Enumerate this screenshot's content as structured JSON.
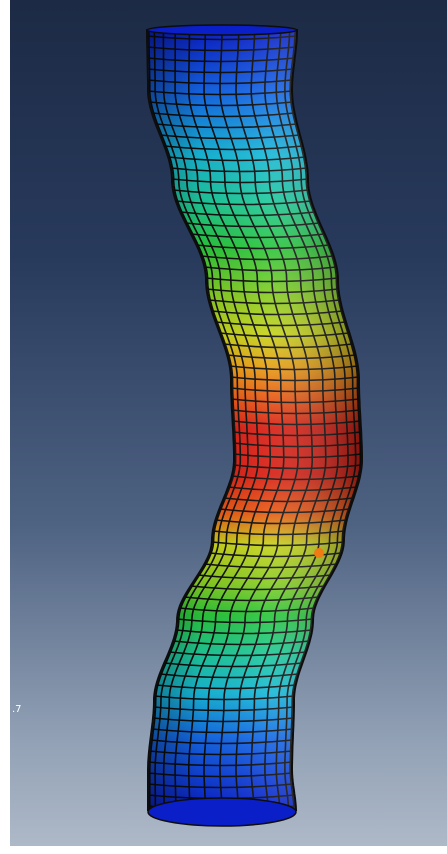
{
  "viewport": {
    "background_top": "#1c2a45",
    "background_bottom": "#aeb9c8"
  },
  "model": {
    "contour_colors": [
      "#0b1fc8",
      "#1566e6",
      "#18b8d8",
      "#1fc89a",
      "#2ac63a",
      "#86cc22",
      "#c6d21a",
      "#e6a012",
      "#e85a12",
      "#d81d12"
    ],
    "mesh_line_color": "#0d0d0d",
    "hot_spot_color": "#f07a14"
  },
  "edge_label": ".7"
}
